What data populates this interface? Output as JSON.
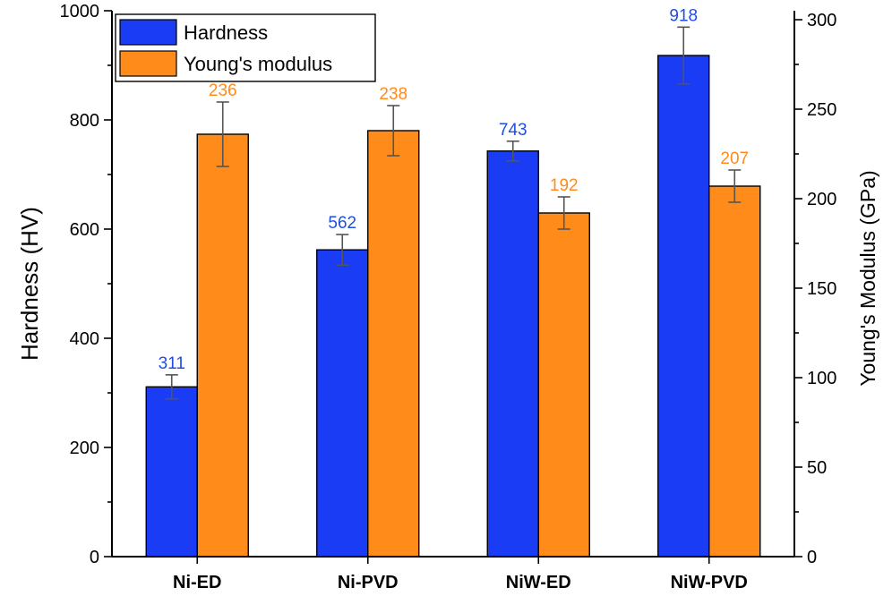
{
  "chart_data": {
    "type": "bar",
    "categories": [
      "Ni-ED",
      "Ni-PVD",
      "NiW-ED",
      "NiW-PVD"
    ],
    "series": [
      {
        "name": "Hardness",
        "axis": "left",
        "color": "#1a3cf5",
        "values": [
          311,
          562,
          743,
          918
        ],
        "errors": [
          22,
          28,
          18,
          52
        ],
        "labels": [
          "311",
          "562",
          "743",
          "918"
        ]
      },
      {
        "name": "Young's modulus",
        "axis": "right",
        "color": "#ff8c1a",
        "values": [
          236,
          238,
          192,
          207
        ],
        "errors": [
          18,
          14,
          9,
          9
        ],
        "labels": [
          "236",
          "238",
          "192",
          "207"
        ]
      }
    ],
    "ylabel": "Hardness (HV)",
    "ylabel_right": "Young's Modulus (GPa)",
    "ylim": [
      0,
      1000
    ],
    "ylim_right": [
      0,
      305
    ],
    "yticks": [
      0,
      200,
      400,
      600,
      800,
      1000
    ],
    "yticks_right": [
      0,
      50,
      100,
      150,
      200,
      250,
      300
    ],
    "label_colors": {
      "Hardness": "#1f4fe0",
      "Young's modulus": "#ff8c1a"
    },
    "legend": "top-left",
    "grid": false
  }
}
